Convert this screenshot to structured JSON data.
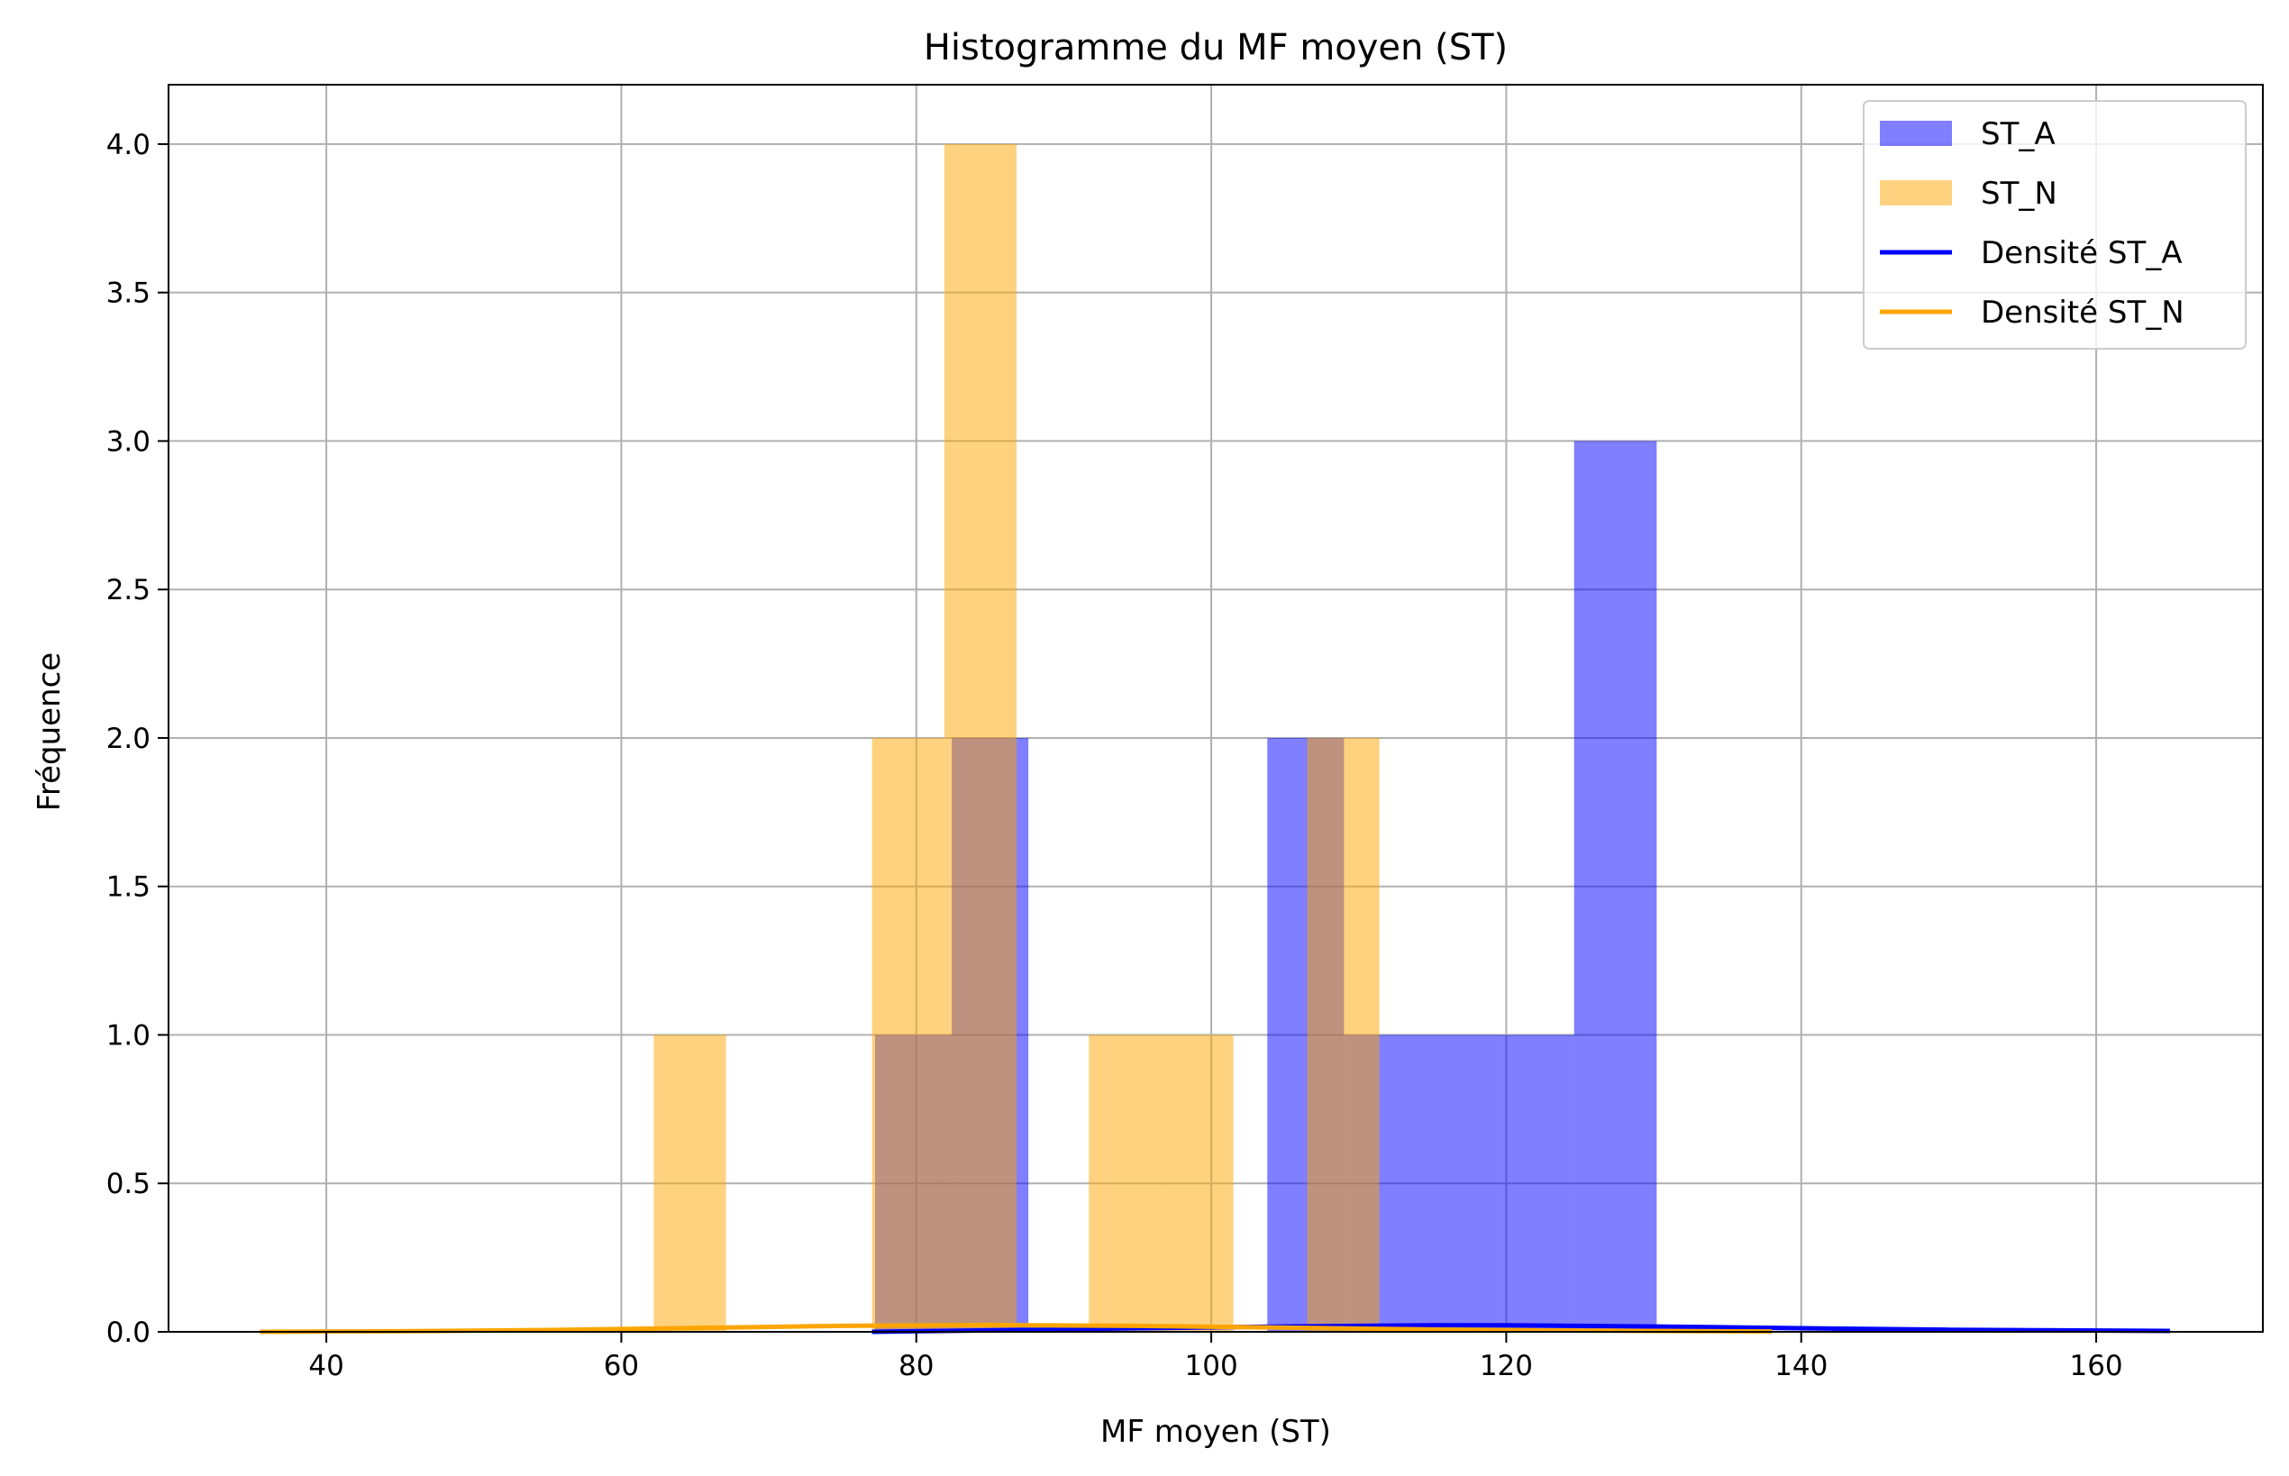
{
  "chart_data": {
    "type": "bar",
    "title": "Histogramme du MF moyen (ST)",
    "xlabel": "MF moyen (ST)",
    "ylabel": "Fréquence",
    "xlim": [
      29.3,
      171.3
    ],
    "ylim": [
      0,
      4.2
    ],
    "xticks": [
      "40",
      "60",
      "80",
      "100",
      "120",
      "140",
      "160"
    ],
    "yticks": [
      "0.0",
      "0.5",
      "1.0",
      "1.5",
      "2.0",
      "2.5",
      "3.0",
      "3.5",
      "4.0"
    ],
    "grid": true,
    "legend_position": "top-right",
    "histograms": [
      {
        "name": "ST_A",
        "color": "#0000ff",
        "opacity": 0.5,
        "bins": [
          {
            "x0": 77.2,
            "x1": 82.4,
            "count": 1
          },
          {
            "x0": 82.4,
            "x1": 87.6,
            "count": 2
          },
          {
            "x0": 103.8,
            "x1": 109.0,
            "count": 2
          },
          {
            "x0": 109.0,
            "x1": 114.2,
            "count": 1
          },
          {
            "x0": 114.2,
            "x1": 119.4,
            "count": 1
          },
          {
            "x0": 119.4,
            "x1": 124.6,
            "count": 1
          },
          {
            "x0": 124.6,
            "x1": 130.2,
            "count": 3
          }
        ]
      },
      {
        "name": "ST_N",
        "color": "#ffa500",
        "opacity": 0.5,
        "bins": [
          {
            "x0": 62.2,
            "x1": 67.1,
            "count": 1
          },
          {
            "x0": 77.0,
            "x1": 81.9,
            "count": 2
          },
          {
            "x0": 81.9,
            "x1": 86.8,
            "count": 4
          },
          {
            "x0": 91.7,
            "x1": 96.6,
            "count": 1
          },
          {
            "x0": 96.6,
            "x1": 101.5,
            "count": 1
          },
          {
            "x0": 106.5,
            "x1": 111.4,
            "count": 2
          }
        ]
      }
    ],
    "series": [
      {
        "name": "Densité ST_A",
        "color": "#0000ff",
        "x": [
          77,
          85,
          95,
          105,
          115,
          120,
          130,
          140,
          150,
          165
        ],
        "values": [
          0.0,
          0.005,
          0.012,
          0.018,
          0.022,
          0.022,
          0.018,
          0.012,
          0.007,
          0.003
        ]
      },
      {
        "name": "Densité ST_N",
        "color": "#ffa500",
        "x": [
          35.5,
          45,
          55,
          65,
          75,
          85,
          95,
          105,
          115,
          125,
          138
        ],
        "values": [
          0.0,
          0.002,
          0.006,
          0.013,
          0.02,
          0.023,
          0.02,
          0.014,
          0.008,
          0.004,
          0.001
        ]
      }
    ]
  }
}
